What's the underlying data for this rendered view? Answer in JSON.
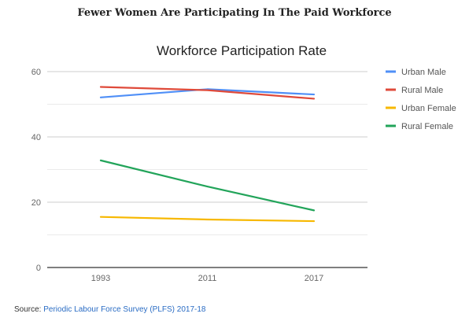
{
  "page": {
    "heading": "Fewer Women Are Participating In The Paid Workforce",
    "source_label": "Source: ",
    "source_link": "Periodic Labour Force Survey (PLFS) 2017-18"
  },
  "chart_data": {
    "type": "line",
    "title": "Workforce Participation Rate",
    "xlabel": "",
    "ylabel": "",
    "x": [
      "1993",
      "2011",
      "2017"
    ],
    "ylim": [
      0,
      60
    ],
    "yticks": [
      "0",
      "20",
      "40",
      "60"
    ],
    "grid": true,
    "legend_position": "right",
    "series": [
      {
        "name": "Urban Male",
        "color": "#4f8ff7",
        "values": [
          52.1,
          54.6,
          53.0
        ]
      },
      {
        "name": "Rural Male",
        "color": "#df4a3a",
        "values": [
          55.3,
          54.3,
          51.7
        ]
      },
      {
        "name": "Urban Female",
        "color": "#f7b800",
        "values": [
          15.5,
          14.7,
          14.2
        ]
      },
      {
        "name": "Rural Female",
        "color": "#22a45a",
        "values": [
          32.8,
          24.8,
          17.5
        ]
      }
    ]
  }
}
